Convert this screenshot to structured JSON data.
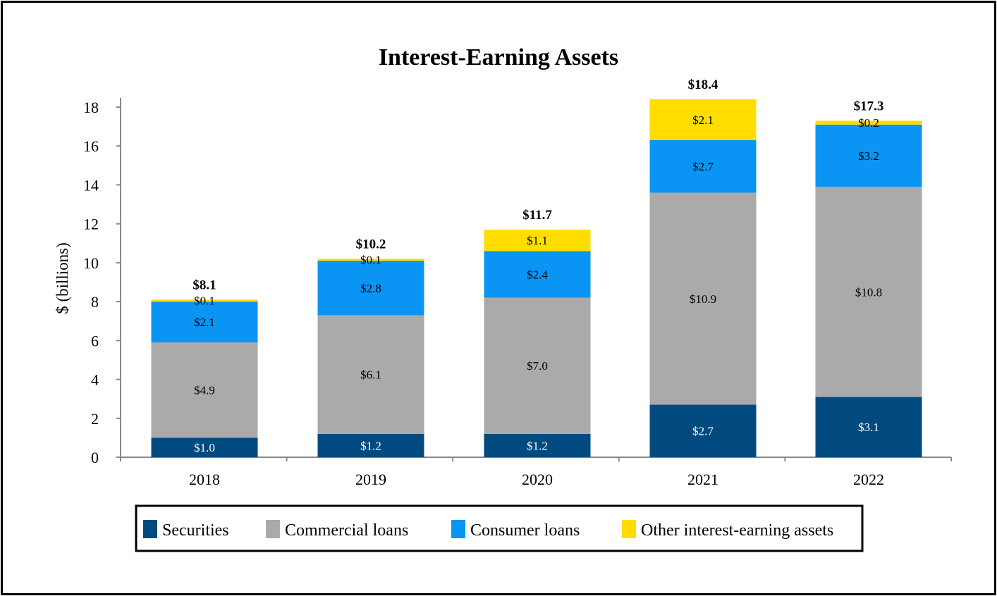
{
  "chart_data": {
    "type": "bar",
    "stacked": true,
    "title": "Interest-Earning Assets",
    "ylabel": "$ (billions)",
    "xlabel": "",
    "ylim": [
      0,
      18
    ],
    "yticks": [
      0,
      2,
      4,
      6,
      8,
      10,
      12,
      14,
      16,
      18
    ],
    "categories": [
      "2018",
      "2019",
      "2020",
      "2021",
      "2022"
    ],
    "series": [
      {
        "name": "Securities",
        "color": "#004a7f",
        "label_color": "#ffffff",
        "values": [
          1.0,
          1.2,
          1.2,
          2.7,
          3.1
        ],
        "labels": [
          "$1.0",
          "$1.2",
          "$1.2",
          "$2.7",
          "$3.1"
        ]
      },
      {
        "name": "Commercial loans",
        "color": "#aaaaaa",
        "label_color": "#000000",
        "values": [
          4.9,
          6.1,
          7.0,
          10.9,
          10.8
        ],
        "labels": [
          "$4.9",
          "$6.1",
          "$7.0",
          "$10.9",
          "$10.8"
        ]
      },
      {
        "name": "Consumer loans",
        "color": "#0a95f5",
        "label_color": "#000000",
        "values": [
          2.1,
          2.8,
          2.4,
          2.7,
          3.2
        ],
        "labels": [
          "$2.1",
          "$2.8",
          "$2.4",
          "$2.7",
          "$3.2"
        ]
      },
      {
        "name": "Other interest-earning assets",
        "color": "#ffdd00",
        "label_color": "#000000",
        "values": [
          0.1,
          0.1,
          1.1,
          2.1,
          0.2
        ],
        "labels": [
          "$0.1",
          "$0.1",
          "$1.1",
          "$2.1",
          "$0.2"
        ]
      }
    ],
    "totals": [
      "$8.1",
      "$10.2",
      "$11.7",
      "$18.4",
      "$17.3"
    ],
    "grid": false,
    "legend_position": "bottom"
  }
}
